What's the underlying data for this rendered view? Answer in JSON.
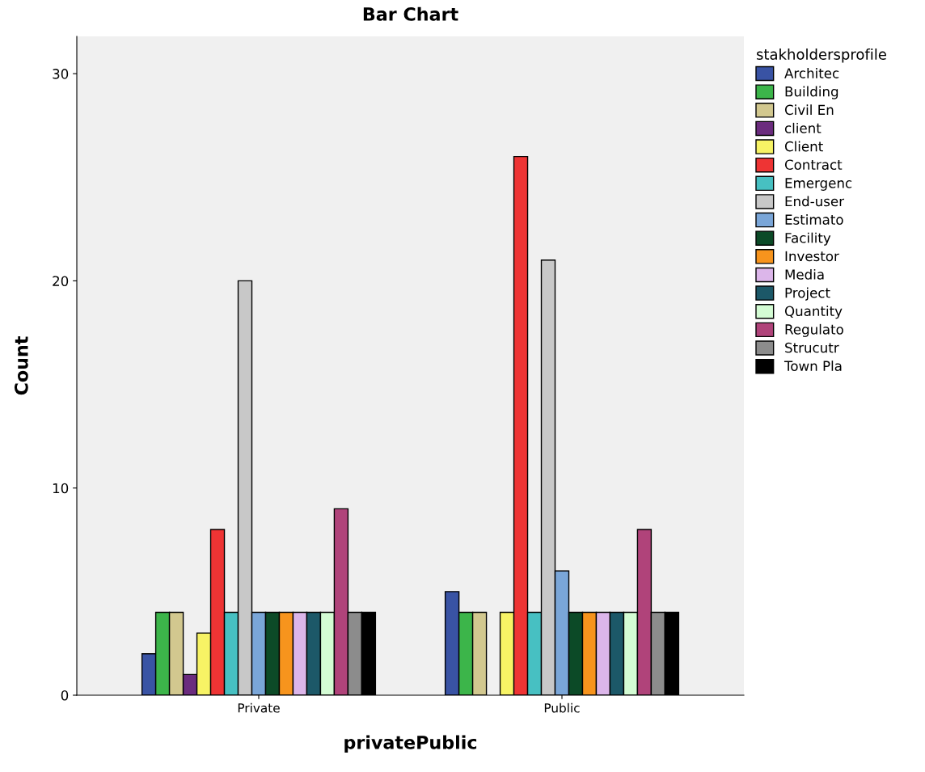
{
  "chart_data": {
    "type": "bar",
    "title": "Bar Chart",
    "xlabel": "privatePublic",
    "ylabel": "Count",
    "legend_title": "stakholdersprofile",
    "categories": [
      "Private",
      "Public"
    ],
    "ylim": [
      0,
      31.8
    ],
    "yticks": [
      0,
      10,
      20,
      30
    ],
    "grid": false,
    "legend": "right",
    "series": [
      {
        "name": "Architec",
        "color": "#3953a4",
        "values": [
          2,
          5
        ]
      },
      {
        "name": "Building",
        "color": "#3cb54a",
        "values": [
          4,
          4
        ]
      },
      {
        "name": "Civil En",
        "color": "#d2c88f",
        "values": [
          4,
          4
        ]
      },
      {
        "name": "client",
        "color": "#6b2c7e",
        "values": [
          1,
          null
        ]
      },
      {
        "name": "Client",
        "color": "#f7f365",
        "values": [
          3,
          4
        ]
      },
      {
        "name": "Contract",
        "color": "#ee3434",
        "values": [
          8,
          26
        ]
      },
      {
        "name": "Emergenc",
        "color": "#47c0c2",
        "values": [
          4,
          4
        ]
      },
      {
        "name": "End-user",
        "color": "#c8c8c8",
        "values": [
          20,
          21
        ]
      },
      {
        "name": "Estimato",
        "color": "#7aa6d8",
        "values": [
          4,
          6
        ]
      },
      {
        "name": "Facility",
        "color": "#0c4a27",
        "values": [
          4,
          4
        ]
      },
      {
        "name": "Investor",
        "color": "#f7941d",
        "values": [
          4,
          4
        ]
      },
      {
        "name": "Media",
        "color": "#dcb6ea",
        "values": [
          4,
          4
        ]
      },
      {
        "name": "Project",
        "color": "#1c5868",
        "values": [
          4,
          4
        ]
      },
      {
        "name": "Quantity",
        "color": "#d4fcd4",
        "values": [
          4,
          4
        ]
      },
      {
        "name": "Regulato",
        "color": "#b0437a",
        "values": [
          9,
          8
        ]
      },
      {
        "name": "Strucutr",
        "color": "#8c8c8c",
        "values": [
          4,
          4
        ]
      },
      {
        "name": "Town Pla",
        "color": "#000000",
        "values": [
          4,
          4
        ]
      }
    ]
  }
}
